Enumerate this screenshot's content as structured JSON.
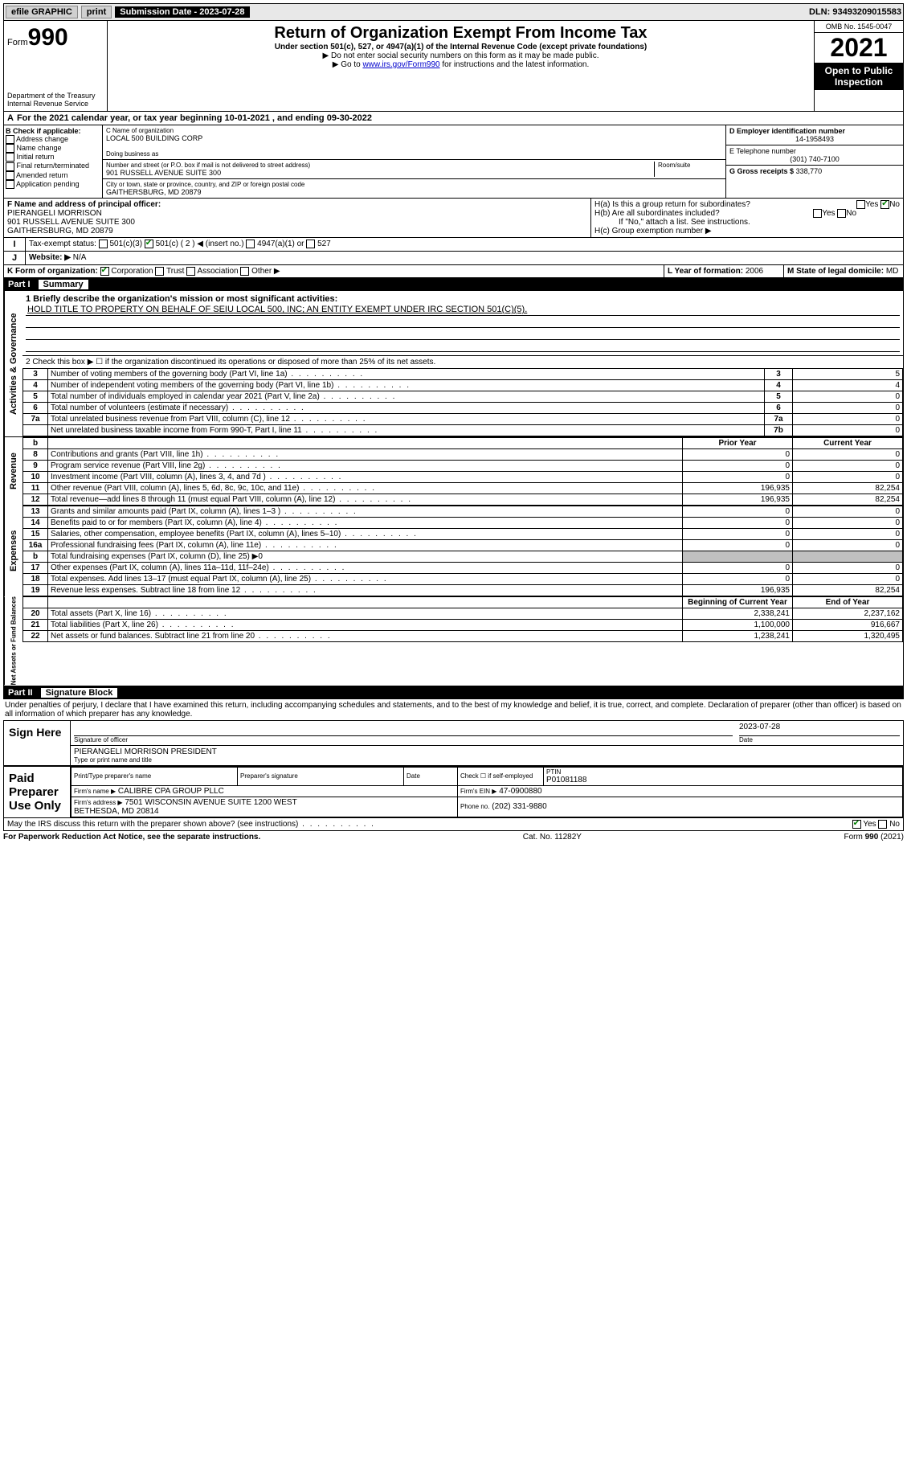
{
  "topbar": {
    "efile": "efile GRAPHIC",
    "print": "print",
    "subdate_label": "Submission Date - 2023-07-28",
    "dln": "DLN: 93493209015583"
  },
  "header": {
    "form_prefix": "Form",
    "form_num": "990",
    "dept": "Department of the Treasury Internal Revenue Service",
    "title": "Return of Organization Exempt From Income Tax",
    "sub1": "Under section 501(c), 527, or 4947(a)(1) of the Internal Revenue Code (except private foundations)",
    "sub2": "▶ Do not enter social security numbers on this form as it may be made public.",
    "sub3_pre": "▶ Go to ",
    "sub3_link": "www.irs.gov/Form990",
    "sub3_post": " for instructions and the latest information.",
    "omb": "OMB No. 1545-0047",
    "year": "2021",
    "inspect": "Open to Public Inspection"
  },
  "calrow": "For the 2021 calendar year, or tax year beginning 10-01-2021   , and ending 09-30-2022",
  "sectionB": {
    "label": "B Check if applicable:",
    "items": [
      "Address change",
      "Name change",
      "Initial return",
      "Final return/terminated",
      "Amended return",
      "Application pending"
    ]
  },
  "sectionC": {
    "name_label": "C Name of organization",
    "name": "LOCAL 500 BUILDING CORP",
    "dba_label": "Doing business as",
    "dba": "",
    "street_label": "Number and street (or P.O. box if mail is not delivered to street address)",
    "room_label": "Room/suite",
    "street": "901 RUSSELL AVENUE SUITE 300",
    "city_label": "City or town, state or province, country, and ZIP or foreign postal code",
    "city": "GAITHERSBURG, MD  20879"
  },
  "sectionD": {
    "ein_label": "D Employer identification number",
    "ein": "14-1958493",
    "phone_label": "E Telephone number",
    "phone": "(301) 740-7100",
    "gross_label": "G Gross receipts $",
    "gross": "338,770"
  },
  "sectionF": {
    "label": "F  Name and address of principal officer:",
    "name": "PIERANGELI MORRISON",
    "addr1": "901 RUSSELL AVENUE SUITE 300",
    "addr2": "GAITHERSBURG, MD  20879"
  },
  "sectionH": {
    "ha": "H(a)  Is this a group return for subordinates?",
    "hb": "H(b)  Are all subordinates included?",
    "hb_note": "If \"No,\" attach a list. See instructions.",
    "hc": "H(c)  Group exemption number ▶"
  },
  "rowI": {
    "label": "Tax-exempt status:",
    "opts": [
      "501(c)(3)",
      "501(c) ( 2 ) ◀ (insert no.)",
      "4947(a)(1) or",
      "527"
    ]
  },
  "rowJ": {
    "label": "Website: ▶",
    "value": "N/A"
  },
  "rowK": {
    "label": "K Form of organization:",
    "opts": [
      "Corporation",
      "Trust",
      "Association",
      "Other ▶"
    ]
  },
  "rowL": {
    "label": "L Year of formation:",
    "value": "2006"
  },
  "rowM": {
    "label": "M State of legal domicile:",
    "value": "MD"
  },
  "part1": {
    "num": "Part I",
    "title": "Summary",
    "line1_label": "1  Briefly describe the organization's mission or most significant activities:",
    "line1_value": "HOLD TITLE TO PROPERTY ON BEHALF OF SEIU LOCAL 500, INC; AN ENTITY EXEMPT UNDER IRC SECTION 501(C)(5).",
    "line2": "2   Check this box ▶ ☐  if the organization discontinued its operations or disposed of more than 25% of its net assets."
  },
  "gov_rows": [
    {
      "n": "3",
      "d": "Number of voting members of the governing body (Part VI, line 1a)",
      "l": "3",
      "v": "5"
    },
    {
      "n": "4",
      "d": "Number of independent voting members of the governing body (Part VI, line 1b)",
      "l": "4",
      "v": "4"
    },
    {
      "n": "5",
      "d": "Total number of individuals employed in calendar year 2021 (Part V, line 2a)",
      "l": "5",
      "v": "0"
    },
    {
      "n": "6",
      "d": "Total number of volunteers (estimate if necessary)",
      "l": "6",
      "v": "0"
    },
    {
      "n": "7a",
      "d": "Total unrelated business revenue from Part VIII, column (C), line 12",
      "l": "7a",
      "v": "0"
    },
    {
      "n": "",
      "d": "Net unrelated business taxable income from Form 990-T, Part I, line 11",
      "l": "7b",
      "v": "0"
    }
  ],
  "rev_header": {
    "b": "b",
    "prior": "Prior Year",
    "curr": "Current Year"
  },
  "rev_rows": [
    {
      "n": "8",
      "d": "Contributions and grants (Part VIII, line 1h)",
      "p": "0",
      "c": "0"
    },
    {
      "n": "9",
      "d": "Program service revenue (Part VIII, line 2g)",
      "p": "0",
      "c": "0"
    },
    {
      "n": "10",
      "d": "Investment income (Part VIII, column (A), lines 3, 4, and 7d )",
      "p": "0",
      "c": "0"
    },
    {
      "n": "11",
      "d": "Other revenue (Part VIII, column (A), lines 5, 6d, 8c, 9c, 10c, and 11e)",
      "p": "196,935",
      "c": "82,254"
    },
    {
      "n": "12",
      "d": "Total revenue—add lines 8 through 11 (must equal Part VIII, column (A), line 12)",
      "p": "196,935",
      "c": "82,254"
    }
  ],
  "exp_rows": [
    {
      "n": "13",
      "d": "Grants and similar amounts paid (Part IX, column (A), lines 1–3 )",
      "p": "0",
      "c": "0"
    },
    {
      "n": "14",
      "d": "Benefits paid to or for members (Part IX, column (A), line 4)",
      "p": "0",
      "c": "0"
    },
    {
      "n": "15",
      "d": "Salaries, other compensation, employee benefits (Part IX, column (A), lines 5–10)",
      "p": "0",
      "c": "0"
    },
    {
      "n": "16a",
      "d": "Professional fundraising fees (Part IX, column (A), line 11e)",
      "p": "0",
      "c": "0"
    },
    {
      "n": "b",
      "d": "Total fundraising expenses (Part IX, column (D), line 25) ▶0",
      "p": "",
      "c": "",
      "shade": true
    },
    {
      "n": "17",
      "d": "Other expenses (Part IX, column (A), lines 11a–11d, 11f–24e)",
      "p": "0",
      "c": "0"
    },
    {
      "n": "18",
      "d": "Total expenses. Add lines 13–17 (must equal Part IX, column (A), line 25)",
      "p": "0",
      "c": "0"
    },
    {
      "n": "19",
      "d": "Revenue less expenses. Subtract line 18 from line 12",
      "p": "196,935",
      "c": "82,254"
    }
  ],
  "na_header": {
    "prior": "Beginning of Current Year",
    "curr": "End of Year"
  },
  "na_rows": [
    {
      "n": "20",
      "d": "Total assets (Part X, line 16)",
      "p": "2,338,241",
      "c": "2,237,162"
    },
    {
      "n": "21",
      "d": "Total liabilities (Part X, line 26)",
      "p": "1,100,000",
      "c": "916,667"
    },
    {
      "n": "22",
      "d": "Net assets or fund balances. Subtract line 21 from line 20",
      "p": "1,238,241",
      "c": "1,320,495"
    }
  ],
  "vert_labels": {
    "gov": "Activities & Governance",
    "rev": "Revenue",
    "exp": "Expenses",
    "na": "Net Assets or Fund Balances"
  },
  "part2": {
    "num": "Part II",
    "title": "Signature Block",
    "decl": "Under penalties of perjury, I declare that I have examined this return, including accompanying schedules and statements, and to the best of my knowledge and belief, it is true, correct, and complete. Declaration of preparer (other than officer) is based on all information of which preparer has any knowledge."
  },
  "sign": {
    "here": "Sign Here",
    "sig_label": "Signature of officer",
    "date_label": "Date",
    "date": "2023-07-28",
    "name": "PIERANGELI MORRISON  PRESIDENT",
    "name_label": "Type or print name and title"
  },
  "paid": {
    "title": "Paid Preparer Use Only",
    "prep_name_label": "Print/Type preparer's name",
    "prep_sig_label": "Preparer's signature",
    "prep_date_label": "Date",
    "self_label": "Check ☐ if self-employed",
    "ptin_label": "PTIN",
    "ptin": "P01081188",
    "firm_name_label": "Firm's name    ▶",
    "firm_name": "CALIBRE CPA GROUP PLLC",
    "firm_ein_label": "Firm's EIN ▶",
    "firm_ein": "47-0900880",
    "firm_addr_label": "Firm's address ▶",
    "firm_addr": "7501 WISCONSIN AVENUE SUITE 1200 WEST\nBETHESDA, MD  20814",
    "phone_label": "Phone no.",
    "phone": "(202) 331-9880"
  },
  "discuss": "May the IRS discuss this return with the preparer shown above? (see instructions)",
  "footer": {
    "left": "For Paperwork Reduction Act Notice, see the separate instructions.",
    "mid": "Cat. No. 11282Y",
    "right": "Form 990 (2021)"
  },
  "yesno": {
    "yes": "Yes",
    "no": "No"
  }
}
